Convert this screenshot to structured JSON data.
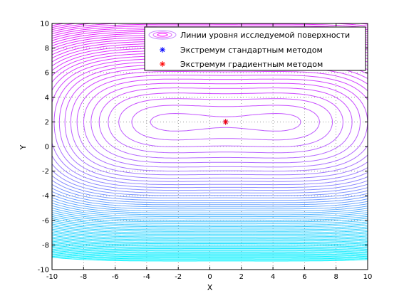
{
  "chart_data": {
    "type": "contour",
    "title": "",
    "xlabel": "X",
    "ylabel": "Y",
    "xlim": [
      -10,
      10
    ],
    "ylim": [
      -10,
      10
    ],
    "xticks": [
      "-10",
      "-8",
      "-6",
      "-4",
      "-2",
      "0",
      "2",
      "4",
      "6",
      "8",
      "10"
    ],
    "yticks": [
      "-10",
      "-8",
      "-6",
      "-4",
      "-2",
      "0",
      "2",
      "4",
      "6",
      "8",
      "10"
    ],
    "grid": true,
    "legend_position": "top-right",
    "legend": [
      "Линии уровня исследуемой поверхности",
      "Экстремум стандартным методом",
      "Экстремум градиентным методом"
    ],
    "colormap": [
      "#00ffff",
      "#ff00ff"
    ],
    "series": [
      {
        "name": "Экстремум стандартным методом",
        "marker": "*",
        "color": "#0000ff",
        "points": [
          [
            1,
            2
          ]
        ]
      },
      {
        "name": "Экстремум градиентным методом",
        "marker": "*",
        "color": "#ff0000",
        "points": [
          [
            1,
            2
          ]
        ]
      }
    ]
  }
}
